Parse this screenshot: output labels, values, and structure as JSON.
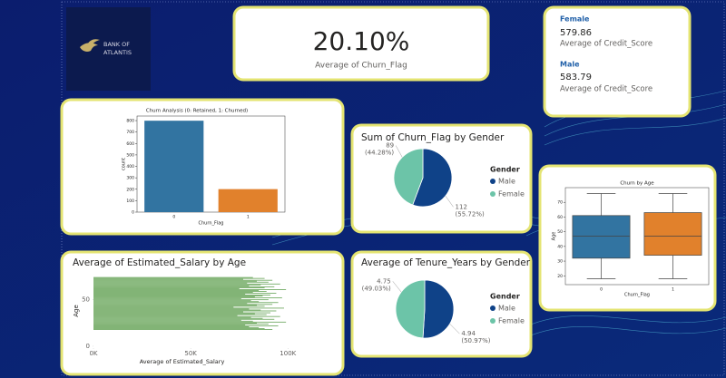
{
  "logo_lines": [
    "BANK OF",
    "ATLANTIS"
  ],
  "kpi": {
    "value": "20.10%",
    "label": "Average of Churn_Flag"
  },
  "gender_cards": [
    {
      "gender": "Female",
      "value": "579.86",
      "label": "Average of Credit_Score"
    },
    {
      "gender": "Male",
      "value": "583.79",
      "label": "Average of Credit_Score"
    }
  ],
  "chart_data": [
    {
      "type": "bar",
      "title": "Churn Analysis (0: Retained, 1: Churned)",
      "categories": [
        "0",
        "1"
      ],
      "values": [
        799,
        201
      ],
      "colors": [
        "#3274a1",
        "#e1812c"
      ],
      "x_label": "Churn_Flag",
      "y_label": "count",
      "ylim": [
        0,
        840
      ],
      "yticks": [
        0,
        100,
        200,
        300,
        400,
        500,
        600,
        700,
        800
      ]
    },
    {
      "type": "pie",
      "title": "Sum of Churn_Flag by Gender",
      "legend_title": "Gender",
      "categories": [
        "Male",
        "Female"
      ],
      "values": [
        112,
        89
      ],
      "percent_labels": [
        "(55.72%)",
        "(44.28%)"
      ],
      "colors": [
        "#0f4288",
        "#6cc4a8"
      ]
    },
    {
      "type": "box",
      "title": "Churn by Age",
      "x_label": "Churn_Flag",
      "y_label": "Age",
      "categories": [
        "0",
        "1"
      ],
      "colors": [
        "#3274a1",
        "#e1812c"
      ],
      "boxes": [
        {
          "min": 18,
          "q1": 32,
          "median": 47,
          "q3": 61,
          "max": 76
        },
        {
          "min": 18,
          "q1": 34,
          "median": 47,
          "q3": 63,
          "max": 76
        }
      ],
      "ylim": [
        14,
        80
      ],
      "yticks": [
        20,
        30,
        40,
        50,
        60,
        70
      ]
    },
    {
      "type": "hbar",
      "title": "Average of Estimated_Salary by Age",
      "x_label": "Average of Estimated_Salary",
      "y_label": "Age",
      "color": "#5e9e4e",
      "y": [
        18,
        19,
        20,
        21,
        22,
        23,
        24,
        25,
        26,
        27,
        28,
        29,
        30,
        31,
        32,
        33,
        34,
        35,
        36,
        37,
        38,
        39,
        40,
        41,
        42,
        43,
        44,
        45,
        46,
        47,
        48,
        49,
        50,
        51,
        52,
        53,
        54,
        55,
        56,
        57,
        58,
        59,
        60,
        61,
        62,
        63,
        64,
        65,
        66,
        67,
        68,
        69,
        70,
        71,
        72,
        73,
        74
      ],
      "values": [
        92000,
        88000,
        85000,
        80000,
        95000,
        78000,
        90000,
        84000,
        99000,
        82000,
        76000,
        93000,
        87000,
        81000,
        96000,
        74000,
        89000,
        83000,
        91000,
        77000,
        94000,
        86000,
        80000,
        98000,
        72000,
        88000,
        84000,
        92000,
        79000,
        95000,
        85000,
        81000,
        90000,
        76000,
        97000,
        83000,
        87000,
        91000,
        78000,
        94000,
        82000,
        89000,
        85000,
        99000,
        75000,
        88000,
        93000,
        80000,
        86000,
        96000,
        79000,
        90000,
        84000,
        92000,
        77000,
        88000,
        82000
      ],
      "xlim": [
        0,
        105000
      ],
      "xticks": [
        {
          "value": 0,
          "label": "0K"
        },
        {
          "value": 50000,
          "label": "50K"
        },
        {
          "value": 100000,
          "label": "100K"
        }
      ],
      "ylim": [
        -2,
        78
      ],
      "yticks": [
        0,
        50
      ]
    },
    {
      "type": "pie",
      "title": "Average of Tenure_Years by Gender",
      "legend_title": "Gender",
      "categories": [
        "Male",
        "Female"
      ],
      "values": [
        4.94,
        4.75
      ],
      "percent_labels": [
        "(50.97%)",
        "(49.03%)"
      ],
      "colors": [
        "#0f4288",
        "#6cc4a8"
      ]
    }
  ]
}
